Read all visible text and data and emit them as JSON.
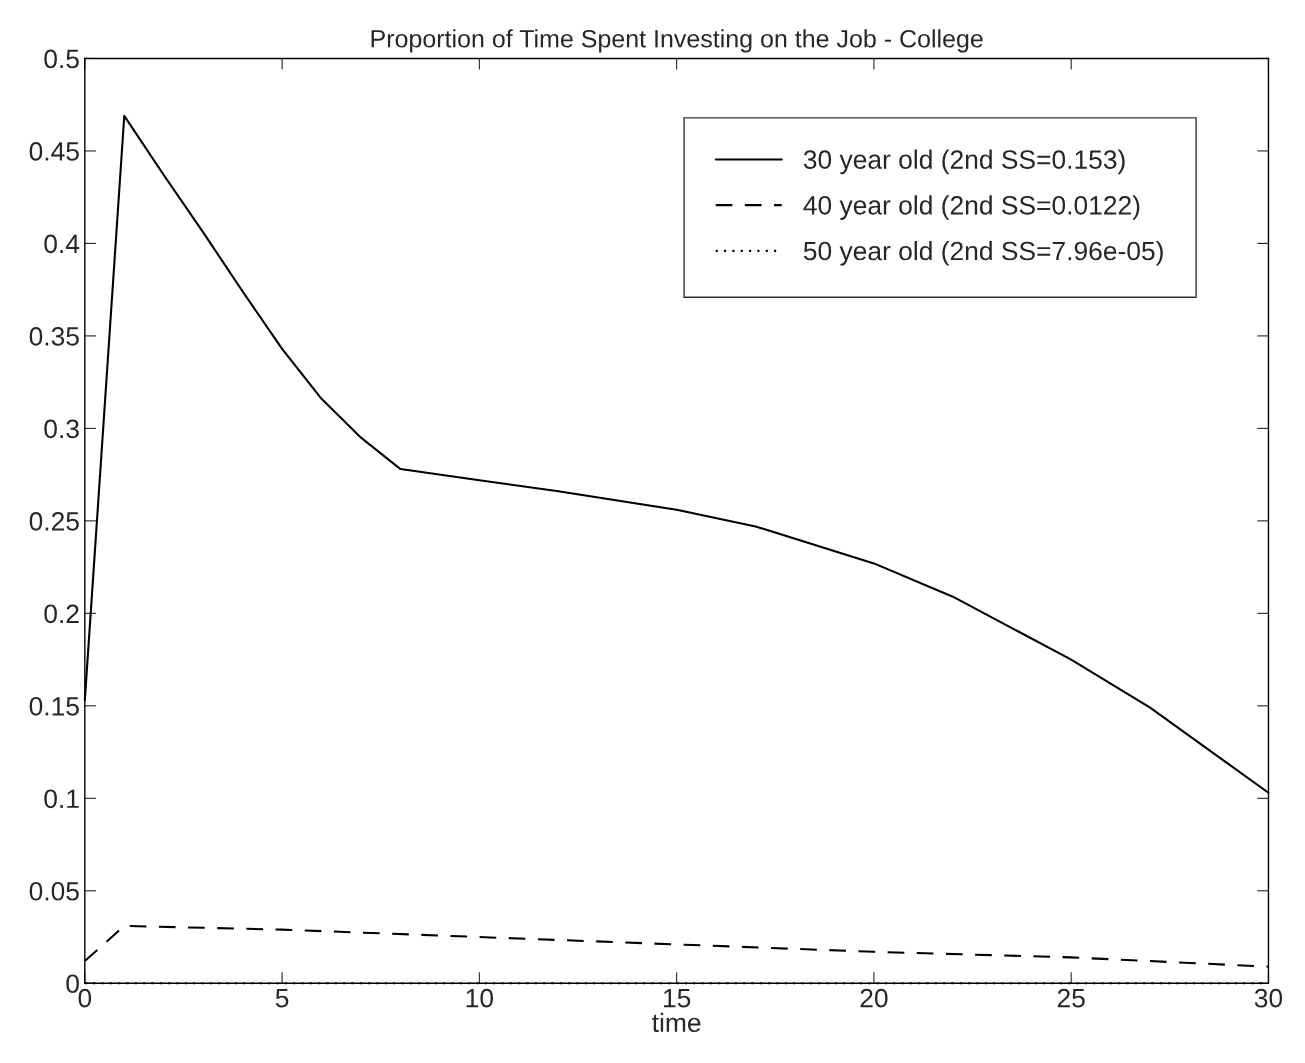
{
  "chart_data": {
    "type": "line",
    "title": "Proportion of Time Spent Investing on the Job - College",
    "xlabel": "time",
    "series": [
      {
        "name": "30 year old (2nd SS=0.153)",
        "color": "#000000",
        "line_style": "solid",
        "x": [
          0,
          1,
          2,
          3,
          4,
          5,
          6,
          7,
          8,
          10,
          12,
          15,
          17,
          20,
          22,
          25,
          27,
          30
        ],
        "values": [
          0.153,
          0.469,
          0.437,
          0.406,
          0.374,
          0.343,
          0.316,
          0.295,
          0.278,
          0.272,
          0.266,
          0.256,
          0.247,
          0.227,
          0.209,
          0.175,
          0.149,
          0.103
        ]
      },
      {
        "name": "40 year old (2nd SS=0.0122)",
        "color": "#000000",
        "line_style": "dashed",
        "x": [
          0,
          1,
          5,
          10,
          15,
          20,
          25,
          30
        ],
        "values": [
          0.012,
          0.031,
          0.029,
          0.025,
          0.021,
          0.017,
          0.014,
          0.009
        ]
      },
      {
        "name": "50 year old (2nd SS=7.96e-05)",
        "color": "#000000",
        "line_style": "dotted",
        "x": [
          0,
          30
        ],
        "values": [
          0,
          0
        ]
      }
    ],
    "xlim": [
      0,
      30
    ],
    "xticks": [
      0,
      5,
      10,
      15,
      20,
      25,
      30
    ],
    "ylim": [
      0,
      0.5
    ],
    "yticks": [
      0,
      0.05,
      0.1,
      0.15,
      0.2,
      0.25,
      0.3,
      0.35,
      0.4,
      0.45,
      0.5
    ],
    "legend": "top right",
    "grid": false
  }
}
